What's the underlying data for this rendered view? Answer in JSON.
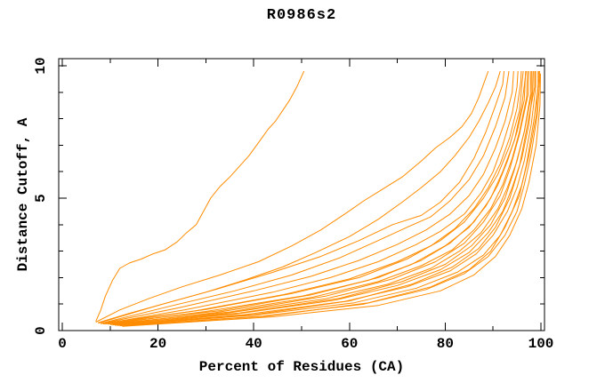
{
  "page": {
    "background": "#ffffff"
  },
  "chart_data": {
    "type": "line",
    "title": "R0986s2",
    "xlabel": "Percent of Residues (CA)",
    "ylabel": "Distance Cutoff, A",
    "xlim": [
      0,
      100
    ],
    "ylim": [
      0,
      10
    ],
    "grid": false,
    "legend": "none",
    "axis_color": "#000000",
    "line_color": "#ff8c00",
    "x_ticks": {
      "major": [
        0,
        20,
        40,
        60,
        80,
        100
      ],
      "minor": [
        10,
        30,
        50,
        70,
        90
      ]
    },
    "y_ticks": {
      "major": [
        0,
        5,
        10
      ],
      "minor": [
        1,
        2,
        3,
        4,
        6,
        7,
        8,
        9
      ]
    },
    "series": [
      {
        "points": [
          [
            7,
            0.35
          ],
          [
            8,
            0.75
          ],
          [
            9,
            1.3
          ],
          [
            10.5,
            1.9
          ],
          [
            12,
            2.35
          ],
          [
            14,
            2.55
          ],
          [
            16.5,
            2.7
          ],
          [
            19,
            2.9
          ],
          [
            21.5,
            3.05
          ],
          [
            24,
            3.35
          ],
          [
            26,
            3.7
          ],
          [
            28,
            4.0
          ],
          [
            29.5,
            4.5
          ],
          [
            31,
            5.0
          ],
          [
            33,
            5.45
          ],
          [
            35,
            5.8
          ],
          [
            37,
            6.2
          ],
          [
            39,
            6.6
          ],
          [
            41,
            7.1
          ],
          [
            43,
            7.6
          ],
          [
            44.5,
            7.9
          ],
          [
            46,
            8.3
          ],
          [
            47.5,
            8.7
          ],
          [
            49,
            9.2
          ],
          [
            50,
            9.6
          ],
          [
            50.5,
            9.8
          ]
        ]
      },
      {
        "points": [
          [
            7,
            0.32
          ],
          [
            12,
            0.78
          ],
          [
            18,
            1.2
          ],
          [
            25,
            1.65
          ],
          [
            33,
            2.1
          ],
          [
            41,
            2.6
          ],
          [
            48,
            3.2
          ],
          [
            54,
            3.8
          ],
          [
            59,
            4.4
          ],
          [
            63,
            4.9
          ],
          [
            67,
            5.35
          ],
          [
            71,
            5.8
          ],
          [
            75,
            6.4
          ],
          [
            78,
            6.9
          ],
          [
            81,
            7.3
          ],
          [
            83.5,
            7.7
          ],
          [
            85.5,
            8.2
          ],
          [
            87,
            8.8
          ],
          [
            88,
            9.3
          ],
          [
            89,
            9.8
          ]
        ]
      },
      {
        "points": [
          [
            7.5,
            0.3
          ],
          [
            14,
            0.65
          ],
          [
            22,
            1.05
          ],
          [
            30,
            1.45
          ],
          [
            38,
            1.9
          ],
          [
            46,
            2.4
          ],
          [
            53,
            2.95
          ],
          [
            60,
            3.55
          ],
          [
            66,
            4.2
          ],
          [
            71,
            4.85
          ],
          [
            75,
            5.4
          ],
          [
            79,
            6.0
          ],
          [
            82,
            6.6
          ],
          [
            85,
            7.3
          ],
          [
            87,
            7.9
          ],
          [
            89,
            8.6
          ],
          [
            90.5,
            9.2
          ],
          [
            91.5,
            9.8
          ]
        ]
      },
      {
        "points": [
          [
            7.5,
            0.28
          ],
          [
            20,
            0.95
          ],
          [
            32,
            1.55
          ],
          [
            44,
            2.2
          ],
          [
            54,
            2.8
          ],
          [
            62,
            3.4
          ],
          [
            69,
            4.0
          ],
          [
            75,
            4.35
          ],
          [
            79,
            4.85
          ],
          [
            83,
            5.6
          ],
          [
            86,
            6.5
          ],
          [
            88.5,
            7.5
          ],
          [
            90.5,
            8.5
          ],
          [
            92,
            9.3
          ],
          [
            92.3,
            9.8
          ]
        ]
      },
      {
        "points": [
          [
            8,
            0.27
          ],
          [
            22,
            0.9
          ],
          [
            36,
            1.5
          ],
          [
            48,
            2.1
          ],
          [
            58,
            2.75
          ],
          [
            66,
            3.4
          ],
          [
            72,
            3.9
          ],
          [
            77,
            4.3
          ],
          [
            81,
            4.9
          ],
          [
            85,
            5.7
          ],
          [
            88,
            6.6
          ],
          [
            90.5,
            7.7
          ],
          [
            92.5,
            8.8
          ],
          [
            93.3,
            9.8
          ]
        ]
      },
      {
        "points": [
          [
            8,
            0.26
          ],
          [
            24,
            0.85
          ],
          [
            40,
            1.5
          ],
          [
            52,
            2.05
          ],
          [
            62,
            2.65
          ],
          [
            70,
            3.25
          ],
          [
            76,
            3.8
          ],
          [
            81,
            4.4
          ],
          [
            85,
            5.1
          ],
          [
            88,
            5.9
          ],
          [
            90.5,
            6.9
          ],
          [
            92.5,
            7.9
          ],
          [
            94,
            9.0
          ],
          [
            94.3,
            9.8
          ]
        ]
      },
      {
        "points": [
          [
            8.5,
            0.25
          ],
          [
            26,
            0.8
          ],
          [
            44,
            1.45
          ],
          [
            56,
            2.0
          ],
          [
            66,
            2.6
          ],
          [
            74,
            3.25
          ],
          [
            79,
            3.75
          ],
          [
            84,
            4.4
          ],
          [
            87.5,
            5.2
          ],
          [
            90,
            6.0
          ],
          [
            92,
            7.0
          ],
          [
            94,
            8.2
          ],
          [
            95,
            9.2
          ],
          [
            95.2,
            9.8
          ]
        ]
      },
      {
        "points": [
          [
            9,
            0.25
          ],
          [
            28,
            0.75
          ],
          [
            46,
            1.35
          ],
          [
            60,
            1.95
          ],
          [
            70,
            2.6
          ],
          [
            77,
            3.2
          ],
          [
            82,
            3.85
          ],
          [
            86,
            4.6
          ],
          [
            89,
            5.4
          ],
          [
            91.5,
            6.3
          ],
          [
            93.5,
            7.3
          ],
          [
            95,
            8.4
          ],
          [
            95.8,
            9.4
          ],
          [
            95.9,
            9.8
          ]
        ]
      },
      {
        "points": [
          [
            9.5,
            0.24
          ],
          [
            30,
            0.72
          ],
          [
            50,
            1.3
          ],
          [
            64,
            1.9
          ],
          [
            73,
            2.5
          ],
          [
            80,
            3.2
          ],
          [
            85,
            3.9
          ],
          [
            88.5,
            4.7
          ],
          [
            91,
            5.5
          ],
          [
            93,
            6.4
          ],
          [
            95,
            7.5
          ],
          [
            96.5,
            8.7
          ],
          [
            96.8,
            9.8
          ]
        ]
      },
      {
        "points": [
          [
            10,
            0.22
          ],
          [
            32,
            0.68
          ],
          [
            52,
            1.25
          ],
          [
            66,
            1.85
          ],
          [
            75,
            2.45
          ],
          [
            81.5,
            3.05
          ],
          [
            86,
            3.8
          ],
          [
            89.5,
            4.6
          ],
          [
            92,
            5.5
          ],
          [
            94,
            6.5
          ],
          [
            95.5,
            7.5
          ],
          [
            97,
            8.8
          ],
          [
            97.2,
            9.8
          ]
        ]
      },
      {
        "points": [
          [
            10.5,
            0.21
          ],
          [
            34,
            0.65
          ],
          [
            55,
            1.2
          ],
          [
            68,
            1.75
          ],
          [
            77,
            2.35
          ],
          [
            83,
            3.0
          ],
          [
            87.5,
            3.7
          ],
          [
            91,
            4.6
          ],
          [
            93,
            5.4
          ],
          [
            95,
            6.4
          ],
          [
            96.5,
            7.5
          ],
          [
            97.8,
            8.9
          ],
          [
            97.9,
            9.8
          ]
        ]
      },
      {
        "points": [
          [
            11,
            0.2
          ],
          [
            36,
            0.62
          ],
          [
            57,
            1.15
          ],
          [
            70,
            1.7
          ],
          [
            79,
            2.3
          ],
          [
            85,
            2.95
          ],
          [
            89,
            3.7
          ],
          [
            92,
            4.5
          ],
          [
            94,
            5.4
          ],
          [
            96,
            6.5
          ],
          [
            97.5,
            7.8
          ],
          [
            98.3,
            9.1
          ],
          [
            98.4,
            9.8
          ]
        ]
      },
      {
        "points": [
          [
            11,
            0.2
          ],
          [
            38,
            0.6
          ],
          [
            59,
            1.1
          ],
          [
            72,
            1.65
          ],
          [
            81,
            2.25
          ],
          [
            86.5,
            2.9
          ],
          [
            90,
            3.6
          ],
          [
            93,
            4.5
          ],
          [
            95,
            5.4
          ],
          [
            96.5,
            6.4
          ],
          [
            98,
            7.8
          ],
          [
            98.9,
            9.2
          ],
          [
            98.9,
            9.8
          ]
        ]
      },
      {
        "points": [
          [
            11.5,
            0.19
          ],
          [
            40,
            0.58
          ],
          [
            61,
            1.05
          ],
          [
            74,
            1.6
          ],
          [
            82.5,
            2.2
          ],
          [
            88,
            2.85
          ],
          [
            91.5,
            3.6
          ],
          [
            94,
            4.5
          ],
          [
            96,
            5.5
          ],
          [
            97.5,
            6.6
          ],
          [
            99,
            8.1
          ],
          [
            99.4,
            9.3
          ],
          [
            99.4,
            9.8
          ]
        ]
      },
      {
        "points": [
          [
            12,
            0.18
          ],
          [
            42,
            0.55
          ],
          [
            63,
            1.0
          ],
          [
            76,
            1.55
          ],
          [
            84,
            2.15
          ],
          [
            89,
            2.8
          ],
          [
            92.5,
            3.6
          ],
          [
            95,
            4.5
          ],
          [
            96.5,
            5.5
          ],
          [
            98,
            6.7
          ],
          [
            99.3,
            8.2
          ],
          [
            99.7,
            9.4
          ],
          [
            99.7,
            9.8
          ]
        ]
      },
      {
        "points": [
          [
            12.5,
            0.16
          ],
          [
            44,
            0.52
          ],
          [
            66,
            0.95
          ],
          [
            79,
            1.5
          ],
          [
            86,
            2.1
          ],
          [
            90.5,
            2.8
          ],
          [
            93.5,
            3.6
          ],
          [
            96,
            4.6
          ],
          [
            97.5,
            5.6
          ],
          [
            99,
            7.0
          ],
          [
            99.8,
            8.5
          ],
          [
            99.9,
            9.7
          ]
        ]
      },
      {
        "points": [
          [
            9.5,
            0.3
          ],
          [
            30,
            0.8
          ],
          [
            48,
            1.4
          ],
          [
            62,
            2.0
          ],
          [
            72,
            2.7
          ],
          [
            79,
            3.4
          ],
          [
            84,
            4.1
          ],
          [
            88,
            5.0
          ],
          [
            91,
            5.9
          ],
          [
            93.5,
            7.0
          ],
          [
            95.5,
            8.3
          ],
          [
            96.3,
            9.8
          ]
        ]
      },
      {
        "points": [
          [
            10,
            0.28
          ],
          [
            33,
            0.75
          ],
          [
            52,
            1.35
          ],
          [
            66,
            2.0
          ],
          [
            75,
            2.65
          ],
          [
            81,
            3.3
          ],
          [
            86,
            4.1
          ],
          [
            89.5,
            5.0
          ],
          [
            92,
            6.0
          ],
          [
            94.5,
            7.2
          ],
          [
            96,
            8.5
          ],
          [
            96.9,
            9.8
          ]
        ]
      },
      {
        "points": [
          [
            10.5,
            0.26
          ],
          [
            35,
            0.7
          ],
          [
            55,
            1.3
          ],
          [
            69,
            1.95
          ],
          [
            78,
            2.6
          ],
          [
            84,
            3.3
          ],
          [
            88,
            4.1
          ],
          [
            91.5,
            5.1
          ],
          [
            93.5,
            6.1
          ],
          [
            95.5,
            7.4
          ],
          [
            97.3,
            8.9
          ],
          [
            97.5,
            9.8
          ]
        ]
      },
      {
        "points": [
          [
            11,
            0.24
          ],
          [
            37,
            0.66
          ],
          [
            58,
            1.22
          ],
          [
            71,
            1.85
          ],
          [
            80,
            2.5
          ],
          [
            85.5,
            3.2
          ],
          [
            89.5,
            4.0
          ],
          [
            92.5,
            5.0
          ],
          [
            94.5,
            6.1
          ],
          [
            96.5,
            7.5
          ],
          [
            98.1,
            9.0
          ],
          [
            98.1,
            9.8
          ]
        ]
      },
      {
        "points": [
          [
            11.5,
            0.22
          ],
          [
            40,
            0.6
          ],
          [
            60,
            1.12
          ],
          [
            73,
            1.75
          ],
          [
            81.5,
            2.4
          ],
          [
            87,
            3.1
          ],
          [
            90.5,
            3.9
          ],
          [
            93.5,
            5.0
          ],
          [
            95.5,
            6.2
          ],
          [
            97,
            7.6
          ],
          [
            98.7,
            9.2
          ],
          [
            98.7,
            9.8
          ]
        ]
      },
      {
        "points": [
          [
            13,
            0.18
          ],
          [
            43,
            0.55
          ],
          [
            64,
            1.05
          ],
          [
            77,
            1.65
          ],
          [
            85,
            2.3
          ],
          [
            89.5,
            3.0
          ],
          [
            92.5,
            3.9
          ],
          [
            95.5,
            5.1
          ],
          [
            97,
            6.3
          ],
          [
            98.5,
            7.9
          ],
          [
            99.6,
            9.5
          ],
          [
            99.6,
            9.8
          ]
        ]
      }
    ]
  }
}
